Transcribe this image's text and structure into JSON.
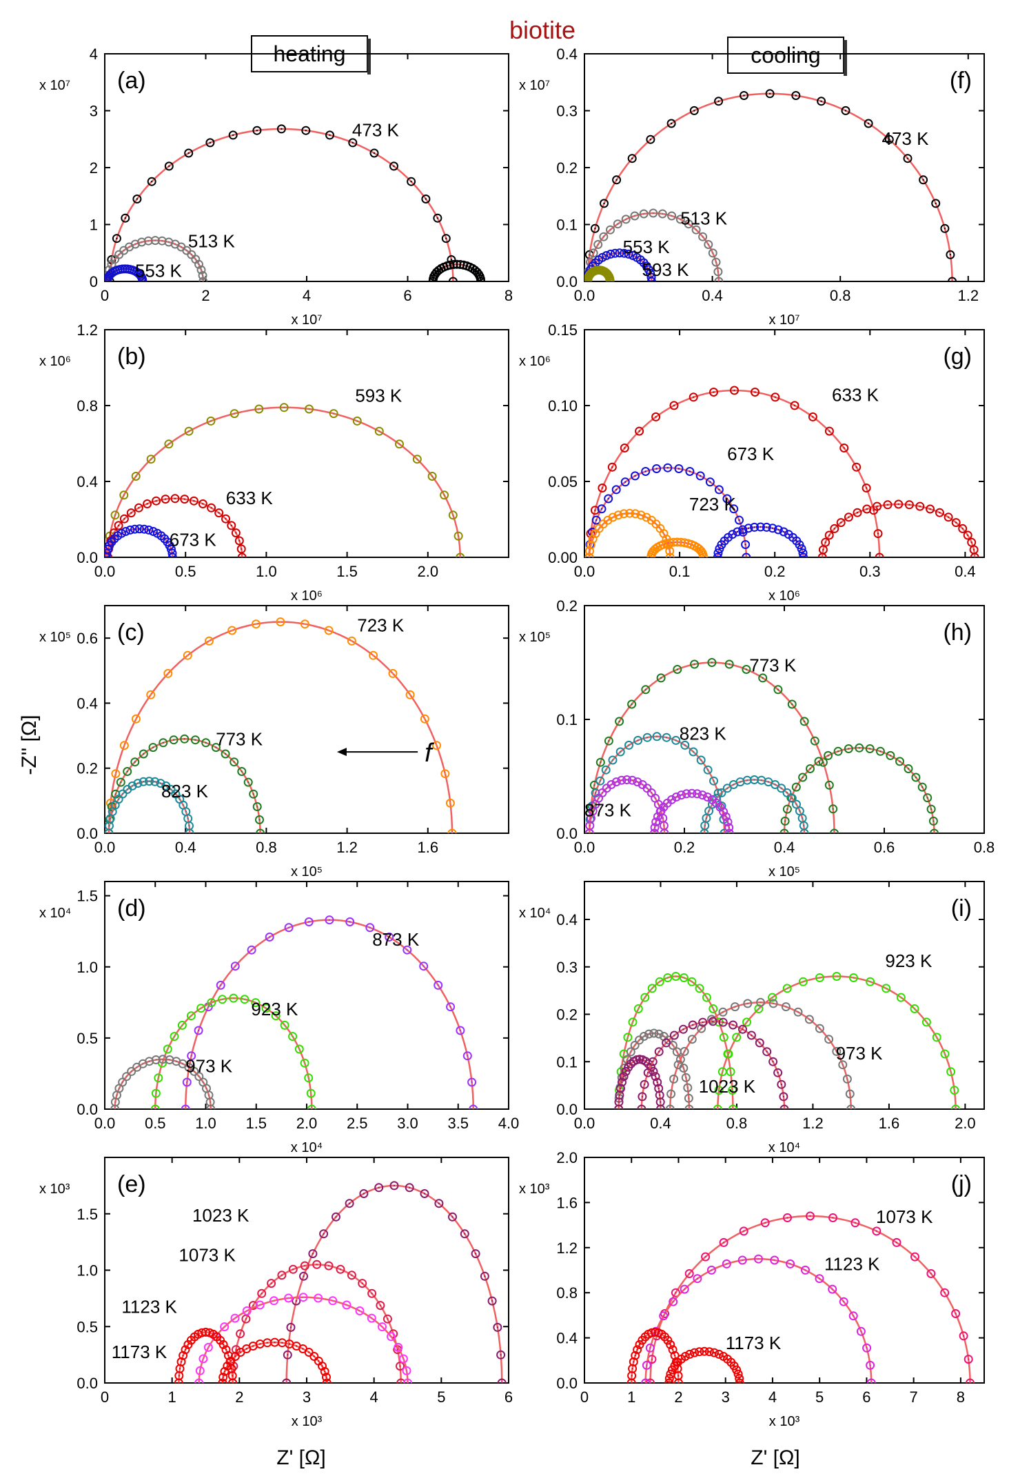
{
  "figure": {
    "title": "biotite",
    "title_color": "#a31515",
    "column_labels": [
      "heating",
      "cooling"
    ],
    "ylabel": "-Z'' [Ω]",
    "xlabel": "Z' [Ω]",
    "arrow_label": "f"
  },
  "chart_data": [
    {
      "type": "scatter",
      "panel": "(a)",
      "column": "heating",
      "row": 0,
      "x_exp": "x 10⁷",
      "y_exp": "x 10⁷",
      "xlim": [
        0,
        8
      ],
      "ylim": [
        0,
        4
      ],
      "xticks": [
        0,
        2,
        4,
        6,
        8
      ],
      "xtick_labels": [
        "0",
        "2",
        "4",
        "6",
        "8"
      ],
      "yticks": [
        0,
        1,
        2,
        3,
        4
      ],
      "ytick_labels": [
        "0",
        "1",
        "2",
        "3",
        "4"
      ],
      "series": [
        {
          "name": "473 K",
          "color": "#000000",
          "arcs": [
            [
              0.1,
              6.9,
              2.68
            ],
            [
              6.5,
              7.45,
              0.3
            ]
          ],
          "fit": true
        },
        {
          "name": "513 K",
          "color": "#777777",
          "arcs": [
            [
              0.05,
              1.95,
              0.72
            ]
          ],
          "fit": true
        },
        {
          "name": "553 K",
          "color": "#1111cc",
          "arcs": [
            [
              0.05,
              0.75,
              0.22
            ]
          ],
          "fit": true
        }
      ],
      "labels": [
        {
          "text": "473 K",
          "x": 4.9,
          "y": 2.55
        },
        {
          "text": "513 K",
          "x": 1.65,
          "y": 0.6
        },
        {
          "text": "553 K",
          "x": 0.6,
          "y": 0.08
        }
      ]
    },
    {
      "type": "scatter",
      "panel": "(b)",
      "column": "heating",
      "row": 1,
      "x_exp": "x 10⁶",
      "y_exp": "x 10⁶",
      "xlim": [
        0,
        2.5
      ],
      "ylim": [
        0,
        1.2
      ],
      "xticks": [
        0,
        0.5,
        1.0,
        1.5,
        2.0
      ],
      "xtick_labels": [
        "0.0",
        "0.5",
        "1.0",
        "1.5",
        "2.0"
      ],
      "yticks": [
        0,
        0.4,
        0.8,
        1.2
      ],
      "ytick_labels": [
        "0.0",
        "0.4",
        "0.8",
        "1.2"
      ],
      "series": [
        {
          "name": "593 K",
          "color": "#8b8b00",
          "arcs": [
            [
              0.02,
              2.2,
              0.79
            ]
          ],
          "fit": true
        },
        {
          "name": "633 K",
          "color": "#cc0000",
          "arcs": [
            [
              0.02,
              0.85,
              0.31
            ]
          ],
          "fit": true
        },
        {
          "name": "673 K",
          "color": "#1111dd",
          "arcs": [
            [
              0.01,
              0.42,
              0.15
            ]
          ],
          "fit": true
        }
      ],
      "labels": [
        {
          "text": "593 K",
          "x": 1.55,
          "y": 0.82
        },
        {
          "text": "633 K",
          "x": 0.75,
          "y": 0.28
        },
        {
          "text": "673 K",
          "x": 0.4,
          "y": 0.06
        }
      ]
    },
    {
      "type": "scatter",
      "panel": "(c)",
      "column": "heating",
      "row": 2,
      "x_exp": "x 10⁵",
      "y_exp": "x 10⁵",
      "xlim": [
        0,
        2.0
      ],
      "ylim": [
        0,
        0.7
      ],
      "xticks": [
        0,
        0.4,
        0.8,
        1.2,
        1.6
      ],
      "xtick_labels": [
        "0.0",
        "0.4",
        "0.8",
        "1.2",
        "1.6"
      ],
      "yticks": [
        0,
        0.2,
        0.4,
        0.6
      ],
      "ytick_labels": [
        "0.0",
        "0.2",
        "0.4",
        "0.6"
      ],
      "series": [
        {
          "name": "723 K",
          "color": "#ff8c00",
          "arcs": [
            [
              0.02,
              1.72,
              0.65
            ]
          ],
          "fit": true
        },
        {
          "name": "773 K",
          "color": "#1e7b1e",
          "arcs": [
            [
              0.02,
              0.77,
              0.29
            ]
          ],
          "fit": true
        },
        {
          "name": "823 K",
          "color": "#1a8a9a",
          "arcs": [
            [
              0.02,
              0.42,
              0.16
            ]
          ],
          "fit": true
        }
      ],
      "labels": [
        {
          "text": "723 K",
          "x": 1.25,
          "y": 0.62
        },
        {
          "text": "773 K",
          "x": 0.55,
          "y": 0.27
        },
        {
          "text": "823 K",
          "x": 0.28,
          "y": 0.11
        }
      ]
    },
    {
      "type": "scatter",
      "panel": "(d)",
      "column": "heating",
      "row": 3,
      "x_exp": "x 10⁴",
      "y_exp": "x 10⁴",
      "xlim": [
        0,
        4.0
      ],
      "ylim": [
        0,
        1.6
      ],
      "xticks": [
        0,
        0.5,
        1.0,
        1.5,
        2.0,
        2.5,
        3.0,
        3.5,
        4.0
      ],
      "xtick_labels": [
        "0.0",
        "0.5",
        "1.0",
        "1.5",
        "2.0",
        "2.5",
        "3.0",
        "3.5",
        "4.0"
      ],
      "yticks": [
        0,
        0.5,
        1.0,
        1.5
      ],
      "ytick_labels": [
        "0.0",
        "0.5",
        "1.0",
        "1.5"
      ],
      "series": [
        {
          "name": "873 K",
          "color": "#9b30ff",
          "arcs": [
            [
              0.8,
              3.65,
              1.33
            ]
          ],
          "fit": true
        },
        {
          "name": "923 K",
          "color": "#33dd00",
          "arcs": [
            [
              0.5,
              2.05,
              0.78
            ]
          ],
          "fit": true
        },
        {
          "name": "973 K",
          "color": "#777777",
          "arcs": [
            [
              0.1,
              1.05,
              0.35
            ]
          ],
          "fit": true
        }
      ],
      "labels": [
        {
          "text": "873 K",
          "x": 2.65,
          "y": 1.15
        },
        {
          "text": "923 K",
          "x": 1.45,
          "y": 0.66
        },
        {
          "text": "973 K",
          "x": 0.8,
          "y": 0.26
        }
      ]
    },
    {
      "type": "scatter",
      "panel": "(e)",
      "column": "heating",
      "row": 4,
      "x_exp": "x 10³",
      "y_exp": "x 10³",
      "xlim": [
        0,
        6
      ],
      "ylim": [
        0,
        2.0
      ],
      "xticks": [
        0,
        1,
        2,
        3,
        4,
        5,
        6
      ],
      "xtick_labels": [
        "0",
        "1",
        "2",
        "3",
        "4",
        "5",
        "6"
      ],
      "yticks": [
        0,
        0.5,
        1.0,
        1.5
      ],
      "ytick_labels": [
        "0.0",
        "0.5",
        "1.0",
        "1.5"
      ],
      "series": [
        {
          "name": "1023 K",
          "color": "#8b1a6b",
          "arcs": [
            [
              2.7,
              5.9,
              1.75
            ]
          ],
          "fit": true
        },
        {
          "name": "1073 K",
          "color": "#dd1a4a",
          "arcs": [
            [
              1.9,
              4.4,
              1.05
            ]
          ],
          "fit": true
        },
        {
          "name": "1123 K",
          "color": "#ff33ff",
          "arcs": [
            [
              1.4,
              4.5,
              0.76
            ]
          ],
          "fit": true
        },
        {
          "name": "1173 K",
          "color": "#ee0000",
          "arcs": [
            [
              1.1,
              1.9,
              0.45
            ],
            [
              1.75,
              3.3,
              0.36
            ]
          ],
          "fit": true
        }
      ],
      "labels": [
        {
          "text": "1023 K",
          "x": 1.3,
          "y": 1.43
        },
        {
          "text": "1073 K",
          "x": 1.1,
          "y": 1.08
        },
        {
          "text": "1123 K",
          "x": 0.25,
          "y": 0.62
        },
        {
          "text": "1173 K",
          "x": 0.1,
          "y": 0.22
        }
      ]
    },
    {
      "type": "scatter",
      "panel": "(f)",
      "column": "cooling",
      "row": 0,
      "x_exp": "x 10⁷",
      "y_exp": "x 10⁷",
      "xlim": [
        0,
        1.25
      ],
      "ylim": [
        0,
        0.4
      ],
      "xticks": [
        0,
        0.4,
        0.8,
        1.2
      ],
      "xtick_labels": [
        "0.0",
        "0.4",
        "0.8",
        "1.2"
      ],
      "yticks": [
        0,
        0.1,
        0.2,
        0.3,
        0.4
      ],
      "ytick_labels": [
        "0.0",
        "0.1",
        "0.2",
        "0.3",
        "0.4"
      ],
      "series": [
        {
          "name": "473 K",
          "color": "#000000",
          "arcs": [
            [
              0.01,
              1.15,
              0.33
            ]
          ],
          "fit": true
        },
        {
          "name": "513 K",
          "color": "#777777",
          "arcs": [
            [
              0.01,
              0.42,
              0.12
            ]
          ],
          "fit": true
        },
        {
          "name": "553 K",
          "color": "#1111cc",
          "arcs": [
            [
              0.01,
              0.21,
              0.05
            ]
          ],
          "fit": true
        },
        {
          "name": "593 K",
          "color": "#8b8b00",
          "arcs": [
            [
              0.01,
              0.08,
              0.02
            ]
          ],
          "fit": true
        }
      ],
      "labels": [
        {
          "text": "473 K",
          "x": 0.93,
          "y": 0.24
        },
        {
          "text": "513 K",
          "x": 0.3,
          "y": 0.1
        },
        {
          "text": "553 K",
          "x": 0.12,
          "y": 0.05
        },
        {
          "text": "593 K",
          "x": 0.18,
          "y": 0.01
        }
      ]
    },
    {
      "type": "scatter",
      "panel": "(g)",
      "column": "cooling",
      "row": 1,
      "x_exp": "x 10⁶",
      "y_exp": "x 10⁶",
      "xlim": [
        0,
        0.42
      ],
      "ylim": [
        0,
        0.15
      ],
      "xticks": [
        0,
        0.1,
        0.2,
        0.3,
        0.4
      ],
      "xtick_labels": [
        "0.0",
        "0.1",
        "0.2",
        "0.3",
        "0.4"
      ],
      "yticks": [
        0,
        0.05,
        0.1,
        0.15
      ],
      "ytick_labels": [
        "0.00",
        "0.05",
        "0.10",
        "0.15"
      ],
      "series": [
        {
          "name": "633 K",
          "color": "#cc0000",
          "arcs": [
            [
              0.005,
              0.31,
              0.11
            ],
            [
              0.25,
              0.41,
              0.035
            ]
          ],
          "fit": true
        },
        {
          "name": "673 K",
          "color": "#1111dd",
          "arcs": [
            [
              0.005,
              0.17,
              0.059
            ],
            [
              0.14,
              0.23,
              0.02
            ]
          ],
          "fit": true
        },
        {
          "name": "723 K",
          "color": "#ff8c00",
          "arcs": [
            [
              0.005,
              0.09,
              0.029
            ],
            [
              0.07,
              0.125,
              0.01
            ]
          ],
          "fit": true
        }
      ],
      "labels": [
        {
          "text": "633 K",
          "x": 0.26,
          "y": 0.103
        },
        {
          "text": "673 K",
          "x": 0.15,
          "y": 0.064
        },
        {
          "text": "723 K",
          "x": 0.11,
          "y": 0.031
        }
      ]
    },
    {
      "type": "scatter",
      "panel": "(h)",
      "column": "cooling",
      "row": 2,
      "x_exp": "x 10⁵",
      "y_exp": "x 10⁵",
      "xlim": [
        0,
        0.8
      ],
      "ylim": [
        0,
        0.2
      ],
      "xticks": [
        0,
        0.2,
        0.4,
        0.6,
        0.8
      ],
      "xtick_labels": [
        "0.0",
        "0.2",
        "0.4",
        "0.6",
        "0.8"
      ],
      "yticks": [
        0,
        0.1,
        0.2
      ],
      "ytick_labels": [
        "0.0",
        "0.1",
        "0.2"
      ],
      "series": [
        {
          "name": "773 K",
          "color": "#1e7b1e",
          "arcs": [
            [
              0.01,
              0.5,
              0.15
            ],
            [
              0.4,
              0.7,
              0.075
            ]
          ],
          "fit": true
        },
        {
          "name": "823 K",
          "color": "#1a8a9a",
          "arcs": [
            [
              0.01,
              0.28,
              0.085
            ],
            [
              0.24,
              0.44,
              0.047
            ]
          ],
          "fit": true
        },
        {
          "name": "873 K",
          "color": "#b030e0",
          "arcs": [
            [
              0.01,
              0.16,
              0.047
            ],
            [
              0.14,
              0.29,
              0.035
            ]
          ],
          "fit": true
        }
      ],
      "labels": [
        {
          "text": "773 K",
          "x": 0.33,
          "y": 0.142
        },
        {
          "text": "823 K",
          "x": 0.19,
          "y": 0.082
        },
        {
          "text": "873 K",
          "x": 0.0,
          "y": 0.015
        }
      ]
    },
    {
      "type": "scatter",
      "panel": "(i)",
      "column": "cooling",
      "row": 3,
      "x_exp": "x 10⁴",
      "y_exp": "x 10⁴",
      "xlim": [
        0,
        2.1
      ],
      "ylim": [
        0,
        0.48
      ],
      "xticks": [
        0,
        0.4,
        0.8,
        1.2,
        1.6,
        2.0
      ],
      "xtick_labels": [
        "0.0",
        "0.4",
        "0.8",
        "1.2",
        "1.6",
        "2.0"
      ],
      "yticks": [
        0,
        0.1,
        0.2,
        0.3,
        0.4
      ],
      "ytick_labels": [
        "0.0",
        "0.1",
        "0.2",
        "0.3",
        "0.4"
      ],
      "series": [
        {
          "name": "923 K",
          "color": "#33dd00",
          "arcs": [
            [
              0.18,
              0.78,
              0.28
            ],
            [
              0.7,
              1.95,
              0.28
            ]
          ],
          "fit": true
        },
        {
          "name": "973 K",
          "color": "#777777",
          "arcs": [
            [
              0.18,
              0.55,
              0.16
            ],
            [
              0.45,
              1.4,
              0.225
            ]
          ],
          "fit": true
        },
        {
          "name": "1023 K",
          "color": "#8b1a6b",
          "arcs": [
            [
              0.18,
              0.4,
              0.105
            ],
            [
              0.3,
              1.05,
              0.185
            ]
          ],
          "fit": true
        }
      ],
      "labels": [
        {
          "text": "923 K",
          "x": 1.58,
          "y": 0.3
        },
        {
          "text": "973 K",
          "x": 1.32,
          "y": 0.105
        },
        {
          "text": "1023 K",
          "x": 0.6,
          "y": 0.035
        }
      ]
    },
    {
      "type": "scatter",
      "panel": "(j)",
      "column": "cooling",
      "row": 4,
      "x_exp": "x 10³",
      "y_exp": "x 10³",
      "xlim": [
        0,
        8.5
      ],
      "ylim": [
        0,
        2.0
      ],
      "xticks": [
        0,
        1,
        2,
        3,
        4,
        5,
        6,
        7,
        8
      ],
      "xtick_labels": [
        "0",
        "1",
        "2",
        "3",
        "4",
        "5",
        "6",
        "7",
        "8"
      ],
      "yticks": [
        0,
        0.4,
        0.8,
        1.2,
        1.6,
        2.0
      ],
      "ytick_labels": [
        "0.0",
        "0.4",
        "0.8",
        "1.2",
        "1.6",
        "2.0"
      ],
      "series": [
        {
          "name": "1073 K",
          "color": "#ee1177",
          "arcs": [
            [
              1.4,
              8.2,
              1.48
            ]
          ],
          "fit": true
        },
        {
          "name": "1123 K",
          "color": "#dd22dd",
          "arcs": [
            [
              1.3,
              6.1,
              1.1
            ]
          ],
          "fit": true
        },
        {
          "name": "1173 K",
          "color": "#ee0000",
          "arcs": [
            [
              1.0,
              2.0,
              0.45
            ],
            [
              1.8,
              3.3,
              0.28
            ]
          ],
          "fit": true
        }
      ],
      "labels": [
        {
          "text": "1073 K",
          "x": 6.2,
          "y": 1.42
        },
        {
          "text": "1123 K",
          "x": 5.1,
          "y": 1.0
        },
        {
          "text": "1173 K",
          "x": 3.0,
          "y": 0.3
        }
      ]
    }
  ]
}
